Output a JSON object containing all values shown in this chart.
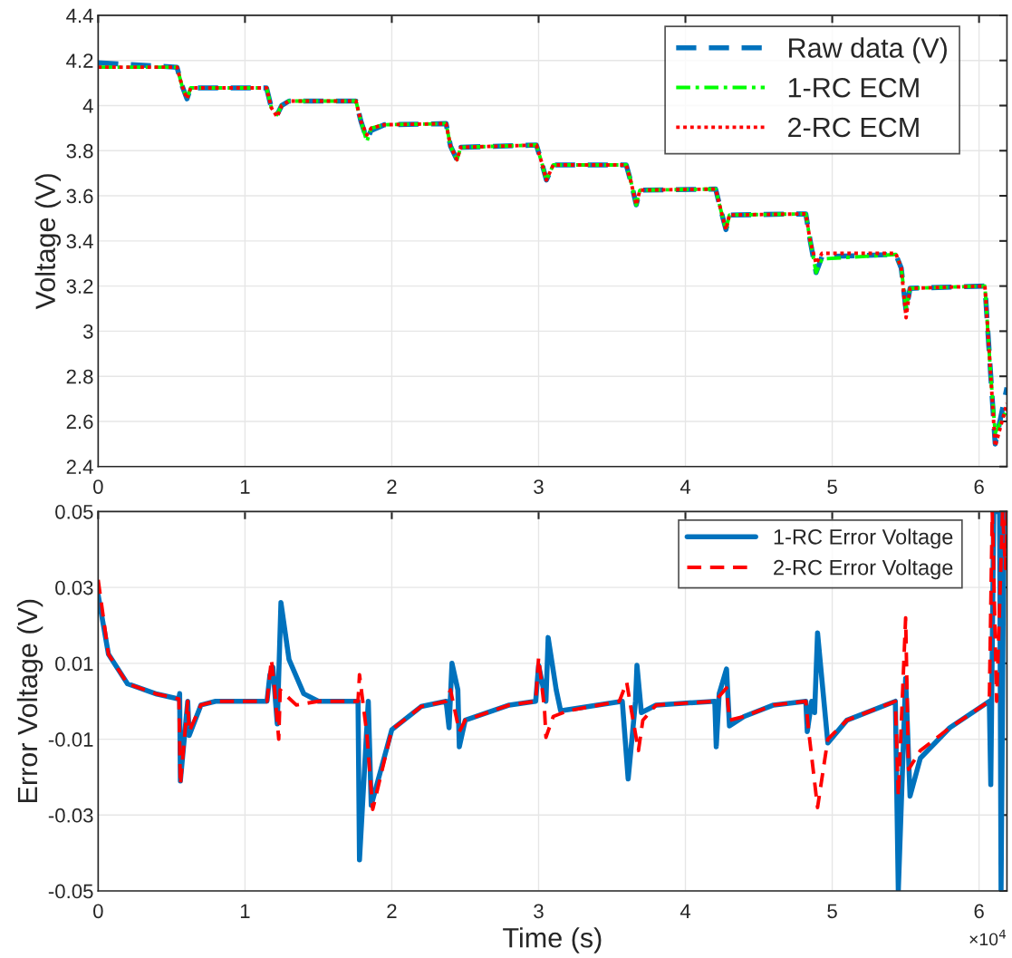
{
  "chart_data": [
    {
      "type": "line",
      "ylabel": "Voltage (V)",
      "xlim": [
        0,
        6.19
      ],
      "ylim": [
        2.4,
        4.4
      ],
      "xticks": [
        0,
        1,
        2,
        3,
        4,
        5,
        6
      ],
      "yticks": [
        2.4,
        2.6,
        2.8,
        3,
        3.2,
        3.4,
        3.6,
        3.8,
        4,
        4.2,
        4.4
      ],
      "grid": true,
      "legend": "top right",
      "x": [
        0,
        0.537,
        0.57,
        0.605,
        0.63,
        1.147,
        1.18,
        1.219,
        1.25,
        1.3,
        1.756,
        1.79,
        1.83,
        1.86,
        1.95,
        2.37,
        2.4,
        2.444,
        2.47,
        2.985,
        3.02,
        3.053,
        3.1,
        3.597,
        3.63,
        3.665,
        3.69,
        4.206,
        4.24,
        4.276,
        4.3,
        4.82,
        4.85,
        4.89,
        4.93,
        5.433,
        5.47,
        5.503,
        5.53,
        6.04,
        6.08,
        6.11,
        6.19
      ],
      "series": [
        {
          "name": "Raw data (V)",
          "color": "#0072bd",
          "line_style": "dashed",
          "values": [
            4.19,
            4.17,
            4.09,
            4.03,
            4.078,
            4.078,
            3.99,
            3.96,
            4.0,
            4.02,
            4.02,
            3.93,
            3.85,
            3.89,
            3.915,
            3.92,
            3.82,
            3.76,
            3.815,
            3.825,
            3.75,
            3.67,
            3.737,
            3.737,
            3.66,
            3.56,
            3.625,
            3.63,
            3.54,
            3.45,
            3.515,
            3.52,
            3.4,
            3.26,
            3.33,
            3.34,
            3.28,
            3.09,
            3.19,
            3.2,
            2.8,
            2.5,
            2.75
          ]
        },
        {
          "name": "1-RC ECM",
          "color": "#00ff00",
          "line_style": "dashdot",
          "values": [
            4.17,
            4.17,
            4.09,
            4.03,
            4.078,
            4.078,
            3.99,
            3.96,
            4.0,
            4.02,
            4.02,
            3.93,
            3.84,
            3.9,
            3.915,
            3.92,
            3.82,
            3.76,
            3.815,
            3.825,
            3.75,
            3.67,
            3.737,
            3.737,
            3.66,
            3.56,
            3.625,
            3.63,
            3.54,
            3.45,
            3.515,
            3.52,
            3.4,
            3.26,
            3.32,
            3.34,
            3.28,
            3.1,
            3.19,
            3.2,
            2.8,
            2.55,
            2.65
          ]
        },
        {
          "name": "2-RC ECM",
          "color": "#ff0000",
          "line_style": "dotted",
          "values": [
            4.17,
            4.17,
            4.09,
            4.03,
            4.078,
            4.078,
            3.99,
            3.95,
            4.0,
            4.02,
            4.02,
            3.93,
            3.87,
            3.9,
            3.915,
            3.92,
            3.82,
            3.76,
            3.815,
            3.825,
            3.75,
            3.67,
            3.737,
            3.737,
            3.66,
            3.56,
            3.625,
            3.63,
            3.54,
            3.45,
            3.515,
            3.52,
            3.4,
            3.3,
            3.345,
            3.345,
            3.28,
            3.06,
            3.19,
            3.2,
            2.8,
            2.49,
            2.68
          ]
        }
      ]
    },
    {
      "type": "line",
      "xlabel": "Time (s)",
      "ylabel": "Error Voltage (V)",
      "xlim": [
        0,
        6.19
      ],
      "ylim": [
        -0.05,
        0.05
      ],
      "xticks": [
        0,
        1,
        2,
        3,
        4,
        5,
        6
      ],
      "yticks": [
        -0.05,
        -0.03,
        -0.01,
        0.01,
        0.03,
        0.05
      ],
      "grid": true,
      "legend": "top right",
      "annotations": [
        "×10$^{4}$"
      ],
      "series": [
        {
          "name": "1-RC Error Voltage",
          "color": "#0072bd",
          "line_style": "solid",
          "x": [
            0,
            0.07,
            0.2,
            0.4,
            0.55,
            0.555,
            0.56,
            0.61,
            0.62,
            0.7,
            0.8,
            1.15,
            1.17,
            1.19,
            1.22,
            1.245,
            1.3,
            1.4,
            1.5,
            1.77,
            1.78,
            1.84,
            1.86,
            2.0,
            2.2,
            2.37,
            2.39,
            2.41,
            2.45,
            2.46,
            2.5,
            2.8,
            2.98,
            3.0,
            3.05,
            3.065,
            3.12,
            3.15,
            3.4,
            3.57,
            3.61,
            3.66,
            3.67,
            3.7,
            3.8,
            4.2,
            4.21,
            4.23,
            4.28,
            4.3,
            4.4,
            4.6,
            4.82,
            4.83,
            4.86,
            4.88,
            4.9,
            4.97,
            5.1,
            5.43,
            5.45,
            5.5,
            5.53,
            5.6,
            5.8,
            6.07,
            6.08,
            6.1,
            6.14,
            6.15,
            6.17,
            6.19
          ],
          "values": [
            0.028,
            0.0124,
            0.0046,
            0.0019,
            0.0006,
            0.002,
            -0.021,
            0,
            -0.009,
            -0.001,
            0,
            0,
            0.007,
            0.009,
            -0.006,
            0.026,
            0.011,
            0.002,
            0,
            0,
            -0.0418,
            0,
            -0.0274,
            -0.0075,
            -0.0014,
            0,
            -0.007,
            0.01,
            0.003,
            -0.012,
            -0.005,
            -0.001,
            0,
            0.0095,
            0,
            0.0168,
            0.003,
            -0.0025,
            -0.001,
            0,
            -0.0205,
            0,
            0.0095,
            -0.003,
            -0.001,
            0,
            -0.012,
            0.002,
            0.0085,
            -0.0065,
            -0.004,
            -0.001,
            0,
            -0.008,
            0,
            -0.003,
            0.018,
            -0.011,
            -0.005,
            0,
            -0.05,
            0.006,
            -0.025,
            -0.015,
            -0.007,
            0,
            -0.022,
            0.05,
            0.05,
            -0.05,
            0.05,
            0.05
          ]
        },
        {
          "name": "2-RC Error Voltage",
          "color": "#ff0000",
          "line_style": "dashed",
          "x": [
            0,
            0.07,
            0.2,
            0.4,
            0.55,
            0.56,
            0.61,
            0.62,
            0.7,
            0.8,
            1.15,
            1.18,
            1.2,
            1.23,
            1.24,
            1.35,
            1.5,
            1.77,
            1.78,
            1.83,
            1.87,
            2.0,
            2.2,
            2.37,
            2.4,
            2.46,
            2.5,
            2.8,
            2.98,
            3.0,
            3.04,
            3.05,
            3.1,
            3.2,
            3.55,
            3.6,
            3.63,
            3.68,
            3.71,
            3.8,
            4.2,
            4.28,
            4.3,
            4.4,
            4.6,
            4.82,
            4.84,
            4.9,
            4.97,
            5.1,
            5.43,
            5.45,
            5.5,
            5.52,
            5.6,
            5.8,
            6.07,
            6.09,
            6.12,
            6.16,
            6.18,
            6.19
          ],
          "values": [
            0.032,
            0.0124,
            0.0046,
            0.0019,
            0.0006,
            -0.022,
            0,
            -0.008,
            -0.001,
            0,
            0,
            0.011,
            0.004,
            -0.01,
            0.003,
            -0.001,
            0,
            0,
            0.007,
            -0.0086,
            -0.0285,
            -0.0075,
            -0.0014,
            0,
            0.003,
            -0.008,
            -0.005,
            -0.001,
            0,
            0.0115,
            -0.002,
            -0.0095,
            -0.004,
            -0.0025,
            0,
            0.005,
            -0.002,
            -0.013,
            -0.005,
            -0.001,
            0,
            0.0035,
            -0.005,
            -0.004,
            -0.001,
            0,
            -0.008,
            -0.028,
            -0.01,
            -0.005,
            0,
            -0.025,
            0.022,
            -0.018,
            -0.013,
            -0.007,
            0,
            0.05,
            0,
            0.05,
            0.035,
            0.05
          ]
        }
      ]
    }
  ]
}
